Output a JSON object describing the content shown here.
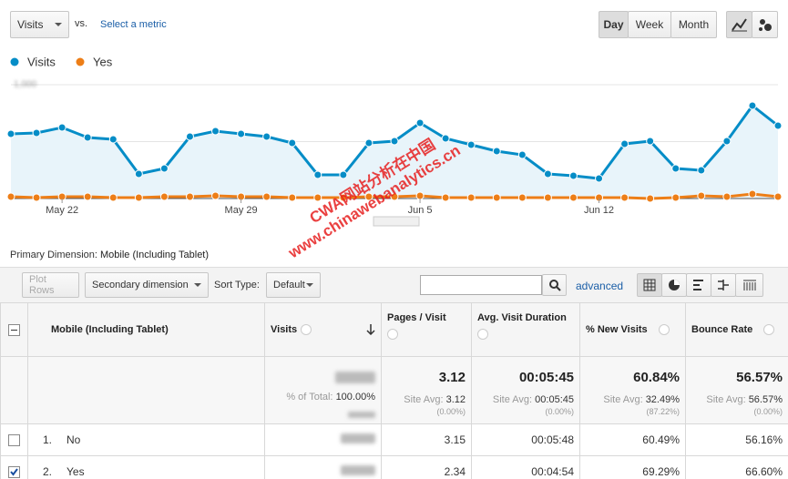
{
  "toolbar": {
    "metric": "Visits",
    "vs": "vs.",
    "select_metric": "Select a metric",
    "periods": [
      "Day",
      "Week",
      "Month"
    ]
  },
  "chart_data": {
    "type": "line",
    "categories": [
      null,
      null,
      "May 22",
      null,
      null,
      null,
      null,
      null,
      null,
      "May 29",
      null,
      null,
      null,
      null,
      null,
      null,
      "Jun 5",
      null,
      null,
      null,
      null,
      null,
      null,
      "Jun 12",
      null,
      null,
      null,
      null,
      null,
      null,
      null
    ],
    "series": [
      {
        "name": "Visits",
        "color": "#058dc7",
        "area": true,
        "values": [
          568,
          576,
          624,
          536,
          520,
          216,
          264,
          544,
          592,
          568,
          544,
          488,
          208,
          208,
          488,
          504,
          664,
          528,
          472,
          416,
          384,
          216,
          200,
          176,
          480,
          504,
          264,
          248,
          504,
          816,
          640
        ]
      },
      {
        "name": "Yes",
        "color": "#ed7e17",
        "area": false,
        "values": [
          16,
          8,
          16,
          16,
          8,
          8,
          16,
          16,
          24,
          16,
          16,
          8,
          8,
          8,
          16,
          16,
          24,
          8,
          8,
          8,
          8,
          8,
          8,
          8,
          8,
          0,
          8,
          24,
          16,
          40,
          16
        ]
      }
    ],
    "ylim": [
      0,
      1000
    ],
    "yticks": [
      500,
      {
        "value": 1000,
        "label": "1,000"
      }
    ],
    "grid": true,
    "legend": "top-left"
  },
  "primary_dimension": {
    "label": "Primary Dimension:",
    "value": "Mobile (Including Tablet)"
  },
  "table_controls": {
    "plot_rows": "Plot Rows",
    "secondary_dimension": "Secondary dimension",
    "sort_type_label": "Sort Type:",
    "sort_type": "Default",
    "advanced": "advanced"
  },
  "table": {
    "columns": [
      "Mobile (Including Tablet)",
      "Visits",
      "Pages / Visit",
      "Avg. Visit Duration",
      "% New Visits",
      "Bounce Rate"
    ],
    "totals": {
      "visits": {
        "share_label": "% of Total:",
        "share": "100.00%"
      },
      "metrics": [
        {
          "value": "3.12",
          "avg_label": "Site Avg:",
          "avg": "3.12",
          "diff": "(0.00%)"
        },
        {
          "value": "00:05:45",
          "avg_label": "Site Avg:",
          "avg": "00:05:45",
          "diff": "(0.00%)"
        },
        {
          "value": "60.84%",
          "avg_label": "Site Avg:",
          "avg": "32.49%",
          "diff": "(87.22%)"
        },
        {
          "value": "56.57%",
          "avg_label": "Site Avg:",
          "avg": "56.57%",
          "diff": "(0.00%)"
        }
      ]
    },
    "rows": [
      {
        "index": "1.",
        "name": "No",
        "checked": false,
        "metrics": [
          "3.15",
          "00:05:48",
          "60.49%",
          "56.16%"
        ]
      },
      {
        "index": "2.",
        "name": "Yes",
        "checked": true,
        "metrics": [
          "2.34",
          "00:04:54",
          "69.29%",
          "66.60%"
        ]
      }
    ]
  },
  "watermark": [
    "CWA网站分析在中国",
    "www.chinawebanalytics.cn"
  ]
}
